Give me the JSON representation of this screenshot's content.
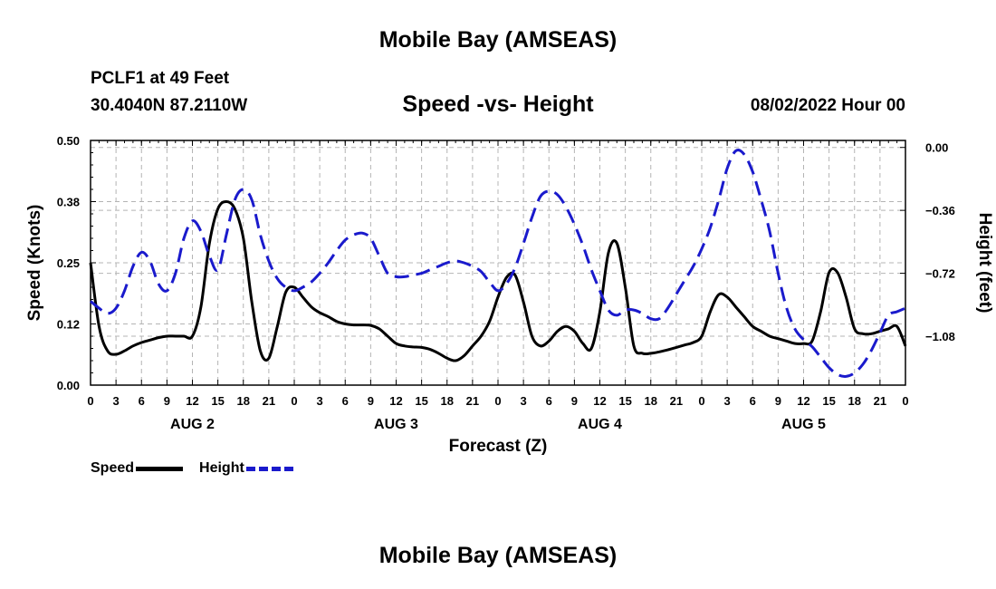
{
  "header": {
    "title": "Mobile Bay (AMSEAS)",
    "station": "PCLF1 at 49 Feet",
    "coords": "30.4040N  87.2110W",
    "subtitle": "Speed -vs- Height",
    "datetime": "08/02/2022 Hour 00"
  },
  "footer": {
    "title": "Mobile Bay (AMSEAS)"
  },
  "legend": {
    "speed_label": "Speed",
    "height_label": "Height"
  },
  "colors": {
    "speed": "#000000",
    "height": "#1a1acc",
    "grid": "#b4b4b4"
  },
  "chart_data": {
    "type": "line",
    "title": "Speed -vs- Height",
    "xlabel": "Forecast (Z)",
    "ylabel": "Speed (Knots)",
    "y2label": "Height (feet)",
    "xlim": [
      0,
      96
    ],
    "ylim": [
      0,
      0.5
    ],
    "y2lim": [
      -1.36,
      0.04
    ],
    "ytick_labels": [
      "0.00",
      "0.12",
      "0.25",
      "0.38",
      "0.50"
    ],
    "yticks": [
      0,
      0.125,
      0.25,
      0.375,
      0.5
    ],
    "y2ticks": [
      0.0,
      -0.36,
      -0.72,
      -1.08
    ],
    "y2tick_labels": [
      "0.00",
      "−0.36",
      "−0.72",
      "−1.08"
    ],
    "xtick_labels": [
      "0",
      "3",
      "6",
      "9",
      "12",
      "15",
      "18",
      "21",
      "0",
      "3",
      "6",
      "9",
      "12",
      "15",
      "18",
      "21",
      "0",
      "3",
      "6",
      "9",
      "12",
      "15",
      "18",
      "21",
      "0",
      "3",
      "6",
      "9",
      "12",
      "15",
      "18",
      "21",
      "0"
    ],
    "day_labels": [
      {
        "label": "AUG 2",
        "hour": 12
      },
      {
        "label": "AUG 3",
        "hour": 36
      },
      {
        "label": "AUG 4",
        "hour": 60
      },
      {
        "label": "AUG 5",
        "hour": 84
      }
    ],
    "series": [
      {
        "name": "Speed",
        "axis": "left",
        "x": [
          0,
          1,
          2,
          3,
          4,
          5,
          6,
          7,
          8,
          9,
          10,
          11,
          12,
          13,
          14,
          15,
          16,
          17,
          18,
          19,
          20,
          21,
          22,
          23,
          24,
          25,
          26,
          27,
          28,
          29,
          30,
          31,
          32,
          33,
          34,
          35,
          36,
          37,
          38,
          39,
          40,
          41,
          42,
          43,
          44,
          45,
          46,
          47,
          48,
          49,
          50,
          51,
          52,
          53,
          54,
          55,
          56,
          57,
          58,
          59,
          60,
          61,
          62,
          63,
          64,
          65,
          66,
          67,
          68,
          69,
          70,
          71,
          72,
          73,
          74,
          75,
          76,
          77,
          78,
          79,
          80,
          81,
          82,
          83,
          84,
          85,
          86,
          87,
          88,
          89,
          90,
          91,
          92,
          93,
          94,
          95,
          96
        ],
        "values": [
          0.25,
          0.12,
          0.07,
          0.063,
          0.07,
          0.08,
          0.087,
          0.092,
          0.097,
          0.1,
          0.1,
          0.1,
          0.1,
          0.16,
          0.29,
          0.36,
          0.375,
          0.36,
          0.3,
          0.17,
          0.07,
          0.055,
          0.12,
          0.19,
          0.2,
          0.18,
          0.16,
          0.148,
          0.14,
          0.13,
          0.125,
          0.123,
          0.123,
          0.122,
          0.115,
          0.1,
          0.085,
          0.08,
          0.078,
          0.077,
          0.073,
          0.065,
          0.055,
          0.05,
          0.06,
          0.08,
          0.1,
          0.13,
          0.18,
          0.22,
          0.225,
          0.17,
          0.1,
          0.08,
          0.09,
          0.11,
          0.12,
          0.11,
          0.085,
          0.075,
          0.15,
          0.27,
          0.29,
          0.2,
          0.08,
          0.065,
          0.065,
          0.068,
          0.072,
          0.077,
          0.082,
          0.087,
          0.1,
          0.15,
          0.185,
          0.18,
          0.16,
          0.14,
          0.12,
          0.11,
          0.1,
          0.095,
          0.09,
          0.085,
          0.085,
          0.09,
          0.15,
          0.23,
          0.23,
          0.18,
          0.115,
          0.105,
          0.105,
          0.11,
          0.115,
          0.12,
          0.08
        ]
      },
      {
        "name": "Height",
        "axis": "right",
        "x": [
          0,
          1,
          2,
          3,
          4,
          5,
          6,
          7,
          8,
          9,
          10,
          11,
          12,
          13,
          14,
          15,
          16,
          17,
          18,
          19,
          20,
          21,
          22,
          23,
          24,
          25,
          26,
          27,
          28,
          29,
          30,
          31,
          32,
          33,
          34,
          35,
          36,
          37,
          38,
          39,
          40,
          41,
          42,
          43,
          44,
          45,
          46,
          47,
          48,
          49,
          50,
          51,
          52,
          53,
          54,
          55,
          56,
          57,
          58,
          59,
          60,
          61,
          62,
          63,
          64,
          65,
          66,
          67,
          68,
          69,
          70,
          71,
          72,
          73,
          74,
          75,
          76,
          77,
          78,
          79,
          80,
          81,
          82,
          83,
          84,
          85,
          86,
          87,
          88,
          89,
          90,
          91,
          92,
          93,
          94,
          95,
          96
        ],
        "values": [
          -0.88,
          -0.92,
          -0.95,
          -0.92,
          -0.82,
          -0.68,
          -0.6,
          -0.65,
          -0.78,
          -0.82,
          -0.72,
          -0.52,
          -0.42,
          -0.48,
          -0.62,
          -0.7,
          -0.5,
          -0.3,
          -0.24,
          -0.3,
          -0.5,
          -0.65,
          -0.75,
          -0.8,
          -0.82,
          -0.8,
          -0.77,
          -0.72,
          -0.66,
          -0.59,
          -0.53,
          -0.5,
          -0.49,
          -0.52,
          -0.62,
          -0.72,
          -0.74,
          -0.74,
          -0.73,
          -0.72,
          -0.7,
          -0.68,
          -0.66,
          -0.65,
          -0.66,
          -0.68,
          -0.71,
          -0.77,
          -0.82,
          -0.78,
          -0.69,
          -0.55,
          -0.4,
          -0.28,
          -0.25,
          -0.27,
          -0.34,
          -0.44,
          -0.56,
          -0.7,
          -0.82,
          -0.93,
          -0.96,
          -0.93,
          -0.93,
          -0.95,
          -0.98,
          -0.98,
          -0.92,
          -0.84,
          -0.76,
          -0.68,
          -0.58,
          -0.46,
          -0.3,
          -0.12,
          -0.02,
          -0.04,
          -0.14,
          -0.3,
          -0.48,
          -0.72,
          -0.92,
          -1.04,
          -1.1,
          -1.14,
          -1.2,
          -1.26,
          -1.3,
          -1.31,
          -1.29,
          -1.24,
          -1.16,
          -1.06,
          -0.96,
          -0.94,
          -0.92
        ]
      }
    ]
  }
}
